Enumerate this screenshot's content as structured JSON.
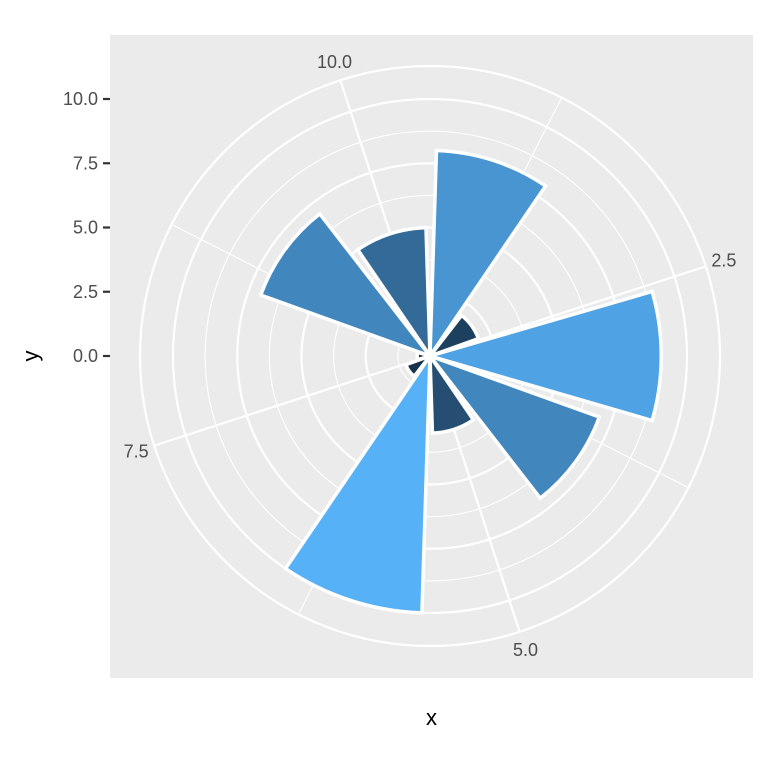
{
  "chart_data": {
    "type": "bar",
    "coord": "polar",
    "xlabel": "x",
    "ylabel": "y",
    "x": [
      1,
      2,
      3,
      4,
      5,
      6,
      7,
      8,
      9,
      10
    ],
    "values": [
      8,
      2,
      9,
      7,
      3,
      10,
      1,
      0.5,
      7,
      5
    ],
    "fill_scale": {
      "low": "#132B43",
      "high": "#56B1F7"
    },
    "ylim": [
      0,
      10
    ],
    "y_ticks": [
      0,
      2.5,
      5,
      7.5,
      10
    ],
    "y_tick_labels": [
      "0.0",
      "2.5",
      "5.0",
      "7.5",
      "10.0"
    ],
    "x_ticks": [
      2.5,
      5,
      7.5,
      10
    ],
    "x_tick_labels": [
      "2.5",
      "5.0",
      "7.5",
      "10.0"
    ],
    "grid": true,
    "colors": {
      "panel": "#EBEBEB",
      "grid": "#FFFFFF",
      "bar_outline": "#FFFFFF"
    }
  }
}
